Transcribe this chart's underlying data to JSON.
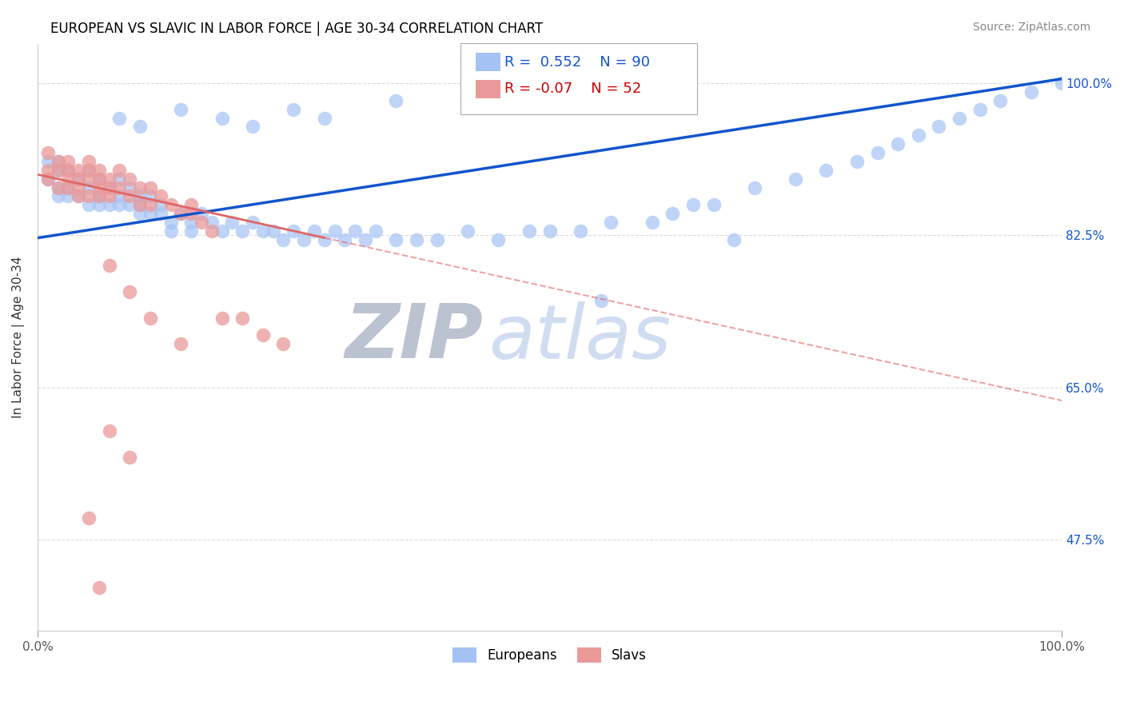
{
  "title": "EUROPEAN VS SLAVIC IN LABOR FORCE | AGE 30-34 CORRELATION CHART",
  "source": "Source: ZipAtlas.com",
  "ylabel": "In Labor Force | Age 30-34",
  "xmin": 0.0,
  "xmax": 1.0,
  "ymin": 0.37,
  "ymax": 1.045,
  "R_blue": 0.552,
  "N_blue": 90,
  "R_pink": -0.07,
  "N_pink": 52,
  "blue_color": "#a4c2f4",
  "pink_color": "#ea9999",
  "blue_line_color": "#1155cc",
  "pink_line_color": "#e06666",
  "grid_color": "#cccccc",
  "background_color": "#ffffff",
  "title_color": "#000000",
  "title_fontsize": 12,
  "legend_fontsize": 13,
  "axis_label_fontsize": 11,
  "ytick_positions": [
    0.475,
    0.65,
    0.825,
    1.0
  ],
  "ytick_labels": [
    "47.5%",
    "65.0%",
    "82.5%",
    "100.0%"
  ],
  "blue_line_x0": 0.0,
  "blue_line_y0": 0.822,
  "blue_line_x1": 1.0,
  "blue_line_y1": 1.005,
  "pink_line_x0": 0.0,
  "pink_line_y0": 0.895,
  "pink_line_x1": 1.0,
  "pink_line_y1": 0.635,
  "pink_solid_xend": 0.28,
  "blue_scatter_x": [
    0.01,
    0.01,
    0.02,
    0.02,
    0.02,
    0.02,
    0.03,
    0.03,
    0.03,
    0.04,
    0.04,
    0.05,
    0.05,
    0.05,
    0.06,
    0.06,
    0.06,
    0.07,
    0.07,
    0.08,
    0.08,
    0.08,
    0.09,
    0.09,
    0.1,
    0.1,
    0.1,
    0.11,
    0.11,
    0.12,
    0.12,
    0.13,
    0.13,
    0.14,
    0.15,
    0.15,
    0.16,
    0.17,
    0.18,
    0.19,
    0.2,
    0.21,
    0.22,
    0.23,
    0.24,
    0.25,
    0.26,
    0.27,
    0.28,
    0.29,
    0.3,
    0.31,
    0.32,
    0.33,
    0.35,
    0.37,
    0.39,
    0.42,
    0.45,
    0.48,
    0.5,
    0.53,
    0.56,
    0.6,
    0.62,
    0.64,
    0.66,
    0.7,
    0.74,
    0.77,
    0.8,
    0.82,
    0.84,
    0.86,
    0.88,
    0.9,
    0.92,
    0.94,
    0.97,
    1.0,
    0.08,
    0.1,
    0.14,
    0.18,
    0.21,
    0.25,
    0.28,
    0.35,
    0.55,
    0.68
  ],
  "blue_scatter_y": [
    0.91,
    0.89,
    0.91,
    0.9,
    0.88,
    0.87,
    0.9,
    0.88,
    0.87,
    0.89,
    0.87,
    0.9,
    0.88,
    0.86,
    0.89,
    0.87,
    0.86,
    0.88,
    0.86,
    0.89,
    0.87,
    0.86,
    0.88,
    0.86,
    0.87,
    0.86,
    0.85,
    0.87,
    0.85,
    0.86,
    0.85,
    0.84,
    0.83,
    0.85,
    0.84,
    0.83,
    0.85,
    0.84,
    0.83,
    0.84,
    0.83,
    0.84,
    0.83,
    0.83,
    0.82,
    0.83,
    0.82,
    0.83,
    0.82,
    0.83,
    0.82,
    0.83,
    0.82,
    0.83,
    0.82,
    0.82,
    0.82,
    0.83,
    0.82,
    0.83,
    0.83,
    0.83,
    0.84,
    0.84,
    0.85,
    0.86,
    0.86,
    0.88,
    0.89,
    0.9,
    0.91,
    0.92,
    0.93,
    0.94,
    0.95,
    0.96,
    0.97,
    0.98,
    0.99,
    1.0,
    0.96,
    0.95,
    0.97,
    0.96,
    0.95,
    0.97,
    0.96,
    0.98,
    0.75,
    0.82
  ],
  "pink_scatter_x": [
    0.01,
    0.01,
    0.01,
    0.02,
    0.02,
    0.02,
    0.03,
    0.03,
    0.03,
    0.03,
    0.04,
    0.04,
    0.04,
    0.04,
    0.05,
    0.05,
    0.05,
    0.05,
    0.06,
    0.06,
    0.06,
    0.06,
    0.07,
    0.07,
    0.07,
    0.08,
    0.08,
    0.09,
    0.09,
    0.1,
    0.1,
    0.11,
    0.11,
    0.12,
    0.13,
    0.14,
    0.15,
    0.15,
    0.16,
    0.17,
    0.18,
    0.2,
    0.22,
    0.24,
    0.07,
    0.09,
    0.11,
    0.14,
    0.07,
    0.09,
    0.05,
    0.06
  ],
  "pink_scatter_y": [
    0.92,
    0.9,
    0.89,
    0.91,
    0.9,
    0.88,
    0.91,
    0.9,
    0.89,
    0.88,
    0.9,
    0.89,
    0.88,
    0.87,
    0.91,
    0.9,
    0.89,
    0.87,
    0.9,
    0.89,
    0.88,
    0.87,
    0.89,
    0.88,
    0.87,
    0.9,
    0.88,
    0.89,
    0.87,
    0.88,
    0.86,
    0.88,
    0.86,
    0.87,
    0.86,
    0.85,
    0.86,
    0.85,
    0.84,
    0.83,
    0.73,
    0.73,
    0.71,
    0.7,
    0.79,
    0.76,
    0.73,
    0.7,
    0.6,
    0.57,
    0.5,
    0.42
  ]
}
